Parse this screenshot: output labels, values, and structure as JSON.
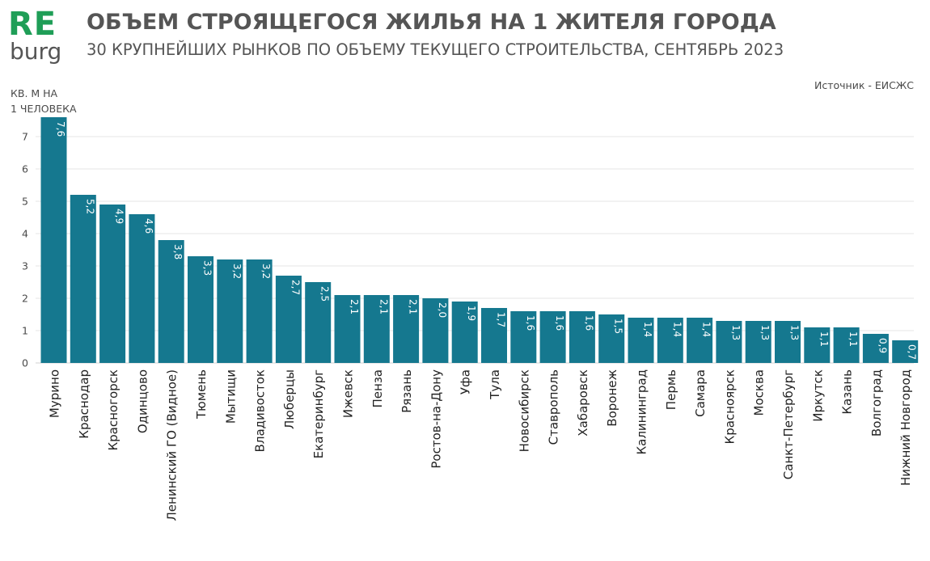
{
  "logo": {
    "top": "RE",
    "bottom": "burg"
  },
  "header": {
    "title": "ОБЪЕМ СТРОЯЩЕГОСЯ ЖИЛЬЯ НА 1 ЖИТЕЛЯ ГОРОДА",
    "subtitle": "30 КРУПНЕЙШИХ РЫНКОВ ПО ОБЪЕМУ ТЕКУЩЕГО СТРОИТЕЛЬСТВА, СЕНТЯБРЬ 2023",
    "source": "Источник - ЕИСЖС"
  },
  "colors": {
    "bar": "#15788f",
    "logo_accent": "#1f9e57",
    "text": "#555555"
  },
  "chart_data": {
    "type": "bar",
    "ylabel_line1": "КВ. М НА",
    "ylabel_line2": "1 ЧЕЛОВЕКА",
    "ylim": [
      0,
      7.6
    ],
    "yticks": [
      "0",
      "1",
      "2",
      "3",
      "4",
      "5",
      "6",
      "7"
    ],
    "grid": true,
    "categories": [
      "Мурино",
      "Краснодар",
      "Красногорск",
      "Одинцово",
      "Ленинский ГО (Видное)",
      "Тюмень",
      "Мытищи",
      "Владивосток",
      "Люберцы",
      "Екатеринбург",
      "Ижевск",
      "Пенза",
      "Рязань",
      "Ростов-на-Дону",
      "Уфа",
      "Тула",
      "Новосибирск",
      "Ставрополь",
      "Хабаровск",
      "Воронеж",
      "Калининград",
      "Пермь",
      "Самара",
      "Красноярск",
      "Москва",
      "Санкт-Петербург",
      "Иркутск",
      "Казань",
      "Волгоград",
      "Нижний Новгород"
    ],
    "values": [
      7.6,
      5.2,
      4.9,
      4.6,
      3.8,
      3.3,
      3.2,
      3.2,
      2.7,
      2.5,
      2.1,
      2.1,
      2.1,
      2.0,
      1.9,
      1.7,
      1.6,
      1.6,
      1.6,
      1.5,
      1.4,
      1.4,
      1.4,
      1.3,
      1.3,
      1.3,
      1.1,
      1.1,
      0.9,
      0.7
    ],
    "data_labels": [
      "7,6",
      "5,2",
      "4,9",
      "4,6",
      "3,8",
      "3,3",
      "3,2",
      "3,2",
      "2,7",
      "2,5",
      "2,1",
      "2,1",
      "2,1",
      "2,0",
      "1,9",
      "1,7",
      "1,6",
      "1,6",
      "1,6",
      "1,5",
      "1,4",
      "1,4",
      "1,4",
      "1,3",
      "1,3",
      "1,3",
      "1,1",
      "1,1",
      "0,9",
      "0,7"
    ]
  }
}
